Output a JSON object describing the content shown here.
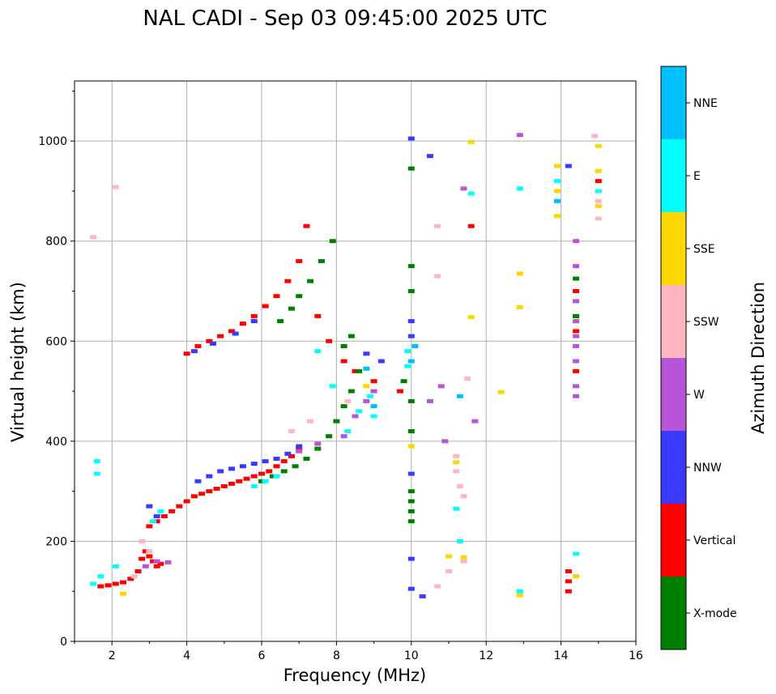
{
  "chart_data": {
    "type": "scatter",
    "title": "NAL CADI - Sep 03 09:45:00 2025 UTC",
    "xlabel": "Frequency (MHz)",
    "ylabel": "Virtual height (km)",
    "xlim": [
      1,
      16
    ],
    "ylim": [
      0,
      1120
    ],
    "xticks": [
      2,
      4,
      6,
      8,
      10,
      12,
      14,
      16
    ],
    "yticks": [
      0,
      200,
      400,
      600,
      800,
      1000
    ],
    "grid": true,
    "colorbar": {
      "label": "Azimuth Direction",
      "categories": [
        {
          "name": "X-mode",
          "color": "#008000"
        },
        {
          "name": "Vertical",
          "color": "#ff0000"
        },
        {
          "name": "NNW",
          "color": "#3a3aff"
        },
        {
          "name": "W",
          "color": "#b655d8"
        },
        {
          "name": "SSW",
          "color": "#ffb6c1"
        },
        {
          "name": "SSE",
          "color": "#ffd700"
        },
        {
          "name": "E",
          "color": "#00ffff"
        },
        {
          "name": "NNE",
          "color": "#00bfff"
        }
      ]
    },
    "series": [
      {
        "name": "Vertical",
        "points": [
          [
            1.7,
            110
          ],
          [
            1.9,
            112
          ],
          [
            2.1,
            115
          ],
          [
            2.3,
            118
          ],
          [
            2.5,
            125
          ],
          [
            2.7,
            140
          ],
          [
            2.8,
            165
          ],
          [
            2.9,
            180
          ],
          [
            3.0,
            170
          ],
          [
            3.1,
            160
          ],
          [
            3.2,
            150
          ],
          [
            3.3,
            155
          ],
          [
            3.0,
            230
          ],
          [
            3.2,
            240
          ],
          [
            3.4,
            250
          ],
          [
            3.6,
            260
          ],
          [
            3.8,
            270
          ],
          [
            4.0,
            280
          ],
          [
            4.2,
            290
          ],
          [
            4.4,
            295
          ],
          [
            4.6,
            300
          ],
          [
            4.8,
            305
          ],
          [
            5.0,
            310
          ],
          [
            5.2,
            315
          ],
          [
            5.4,
            320
          ],
          [
            5.6,
            325
          ],
          [
            5.8,
            330
          ],
          [
            6.0,
            335
          ],
          [
            6.2,
            340
          ],
          [
            6.4,
            350
          ],
          [
            6.6,
            360
          ],
          [
            6.8,
            370
          ],
          [
            7.0,
            385
          ],
          [
            4.0,
            575
          ],
          [
            4.3,
            590
          ],
          [
            4.6,
            600
          ],
          [
            4.9,
            610
          ],
          [
            5.2,
            620
          ],
          [
            5.5,
            635
          ],
          [
            5.8,
            650
          ],
          [
            6.1,
            670
          ],
          [
            6.4,
            690
          ],
          [
            6.7,
            720
          ],
          [
            7.0,
            760
          ],
          [
            7.2,
            830
          ],
          [
            7.5,
            650
          ],
          [
            7.8,
            600
          ],
          [
            8.2,
            560
          ],
          [
            8.5,
            540
          ],
          [
            9.0,
            520
          ],
          [
            9.7,
            500
          ],
          [
            14.2,
            100
          ],
          [
            14.2,
            120
          ],
          [
            14.2,
            140
          ],
          [
            14.4,
            540
          ],
          [
            14.4,
            620
          ],
          [
            14.4,
            650
          ],
          [
            14.4,
            700
          ],
          [
            11.6,
            830
          ],
          [
            15.0,
            920
          ]
        ]
      },
      {
        "name": "X-mode",
        "points": [
          [
            6.0,
            320
          ],
          [
            6.3,
            330
          ],
          [
            6.6,
            340
          ],
          [
            6.9,
            350
          ],
          [
            7.2,
            365
          ],
          [
            7.5,
            385
          ],
          [
            7.8,
            410
          ],
          [
            8.0,
            440
          ],
          [
            8.2,
            470
          ],
          [
            8.4,
            500
          ],
          [
            8.6,
            540
          ],
          [
            8.2,
            590
          ],
          [
            8.4,
            610
          ],
          [
            6.5,
            640
          ],
          [
            6.8,
            665
          ],
          [
            7.0,
            690
          ],
          [
            7.3,
            720
          ],
          [
            7.6,
            760
          ],
          [
            7.9,
            800
          ],
          [
            9.8,
            520
          ],
          [
            10.0,
            480
          ],
          [
            10.0,
            420
          ],
          [
            10.0,
            300
          ],
          [
            10.0,
            280
          ],
          [
            10.0,
            260
          ],
          [
            10.0,
            240
          ],
          [
            10.0,
            750
          ],
          [
            10.0,
            700
          ],
          [
            10.0,
            945
          ],
          [
            14.4,
            650
          ],
          [
            14.4,
            725
          ]
        ]
      },
      {
        "name": "NNW",
        "points": [
          [
            4.3,
            320
          ],
          [
            4.6,
            330
          ],
          [
            4.9,
            340
          ],
          [
            5.2,
            345
          ],
          [
            5.5,
            350
          ],
          [
            5.8,
            355
          ],
          [
            6.1,
            360
          ],
          [
            6.4,
            365
          ],
          [
            6.7,
            375
          ],
          [
            7.0,
            390
          ],
          [
            4.2,
            580
          ],
          [
            4.7,
            595
          ],
          [
            5.3,
            615
          ],
          [
            5.8,
            640
          ],
          [
            8.8,
            575
          ],
          [
            9.2,
            560
          ],
          [
            10.0,
            610
          ],
          [
            10.0,
            640
          ],
          [
            10.0,
            335
          ],
          [
            10.0,
            1005
          ],
          [
            10.5,
            970
          ],
          [
            10.0,
            165
          ],
          [
            10.0,
            105
          ],
          [
            10.3,
            90
          ],
          [
            14.2,
            950
          ],
          [
            3.2,
            250
          ],
          [
            3.0,
            270
          ]
        ]
      },
      {
        "name": "W",
        "points": [
          [
            2.9,
            150
          ],
          [
            3.2,
            160
          ],
          [
            3.5,
            158
          ],
          [
            7.0,
            380
          ],
          [
            7.5,
            395
          ],
          [
            8.2,
            410
          ],
          [
            8.5,
            450
          ],
          [
            8.8,
            480
          ],
          [
            9.0,
            500
          ],
          [
            14.4,
            490
          ],
          [
            14.4,
            510
          ],
          [
            14.4,
            560
          ],
          [
            14.4,
            590
          ],
          [
            14.4,
            610
          ],
          [
            14.4,
            640
          ],
          [
            14.4,
            680
          ],
          [
            14.4,
            750
          ],
          [
            14.4,
            800
          ],
          [
            12.9,
            1012
          ],
          [
            11.4,
            905
          ],
          [
            10.8,
            510
          ],
          [
            10.9,
            400
          ],
          [
            11.7,
            440
          ],
          [
            10.5,
            480
          ]
        ]
      },
      {
        "name": "SSW",
        "points": [
          [
            2.6,
            130
          ],
          [
            2.8,
            200
          ],
          [
            3.0,
            180
          ],
          [
            6.8,
            420
          ],
          [
            7.3,
            440
          ],
          [
            8.3,
            480
          ],
          [
            11.2,
            370
          ],
          [
            11.2,
            340
          ],
          [
            11.3,
            310
          ],
          [
            11.4,
            290
          ],
          [
            11.4,
            160
          ],
          [
            11.0,
            140
          ],
          [
            10.7,
            110
          ],
          [
            10.7,
            730
          ],
          [
            10.7,
            830
          ],
          [
            11.5,
            525
          ],
          [
            15.0,
            845
          ],
          [
            15.0,
            880
          ],
          [
            14.9,
            1010
          ],
          [
            1.5,
            808
          ],
          [
            2.1,
            908
          ]
        ]
      },
      {
        "name": "SSE",
        "points": [
          [
            2.3,
            95
          ],
          [
            8.8,
            510
          ],
          [
            12.4,
            498
          ],
          [
            12.9,
            735
          ],
          [
            12.9,
            668
          ],
          [
            11.6,
            648
          ],
          [
            11.6,
            998
          ],
          [
            13.9,
            850
          ],
          [
            13.9,
            900
          ],
          [
            13.9,
            950
          ],
          [
            15.0,
            870
          ],
          [
            15.0,
            940
          ],
          [
            15.0,
            990
          ],
          [
            10.0,
            390
          ],
          [
            11.2,
            358
          ],
          [
            11.4,
            168
          ],
          [
            12.9,
            92
          ],
          [
            14.4,
            130
          ],
          [
            11.0,
            170
          ]
        ]
      },
      {
        "name": "E",
        "points": [
          [
            1.5,
            115
          ],
          [
            1.7,
            130
          ],
          [
            2.1,
            150
          ],
          [
            3.1,
            240
          ],
          [
            3.3,
            260
          ],
          [
            5.8,
            310
          ],
          [
            6.1,
            320
          ],
          [
            6.4,
            330
          ],
          [
            8.3,
            420
          ],
          [
            8.6,
            460
          ],
          [
            8.9,
            490
          ],
          [
            9.0,
            450
          ],
          [
            9.9,
            550
          ],
          [
            9.9,
            580
          ],
          [
            7.9,
            510
          ],
          [
            7.5,
            580
          ],
          [
            12.9,
            905
          ],
          [
            11.6,
            895
          ],
          [
            11.2,
            265
          ],
          [
            11.3,
            200
          ],
          [
            13.9,
            920
          ],
          [
            15.0,
            900
          ],
          [
            1.6,
            360
          ],
          [
            1.6,
            335
          ],
          [
            14.4,
            175
          ],
          [
            12.9,
            100
          ]
        ]
      },
      {
        "name": "NNE",
        "points": [
          [
            9.0,
            470
          ],
          [
            8.8,
            545
          ],
          [
            10.0,
            560
          ],
          [
            10.1,
            590
          ],
          [
            11.3,
            490
          ],
          [
            13.9,
            880
          ]
        ]
      }
    ]
  }
}
